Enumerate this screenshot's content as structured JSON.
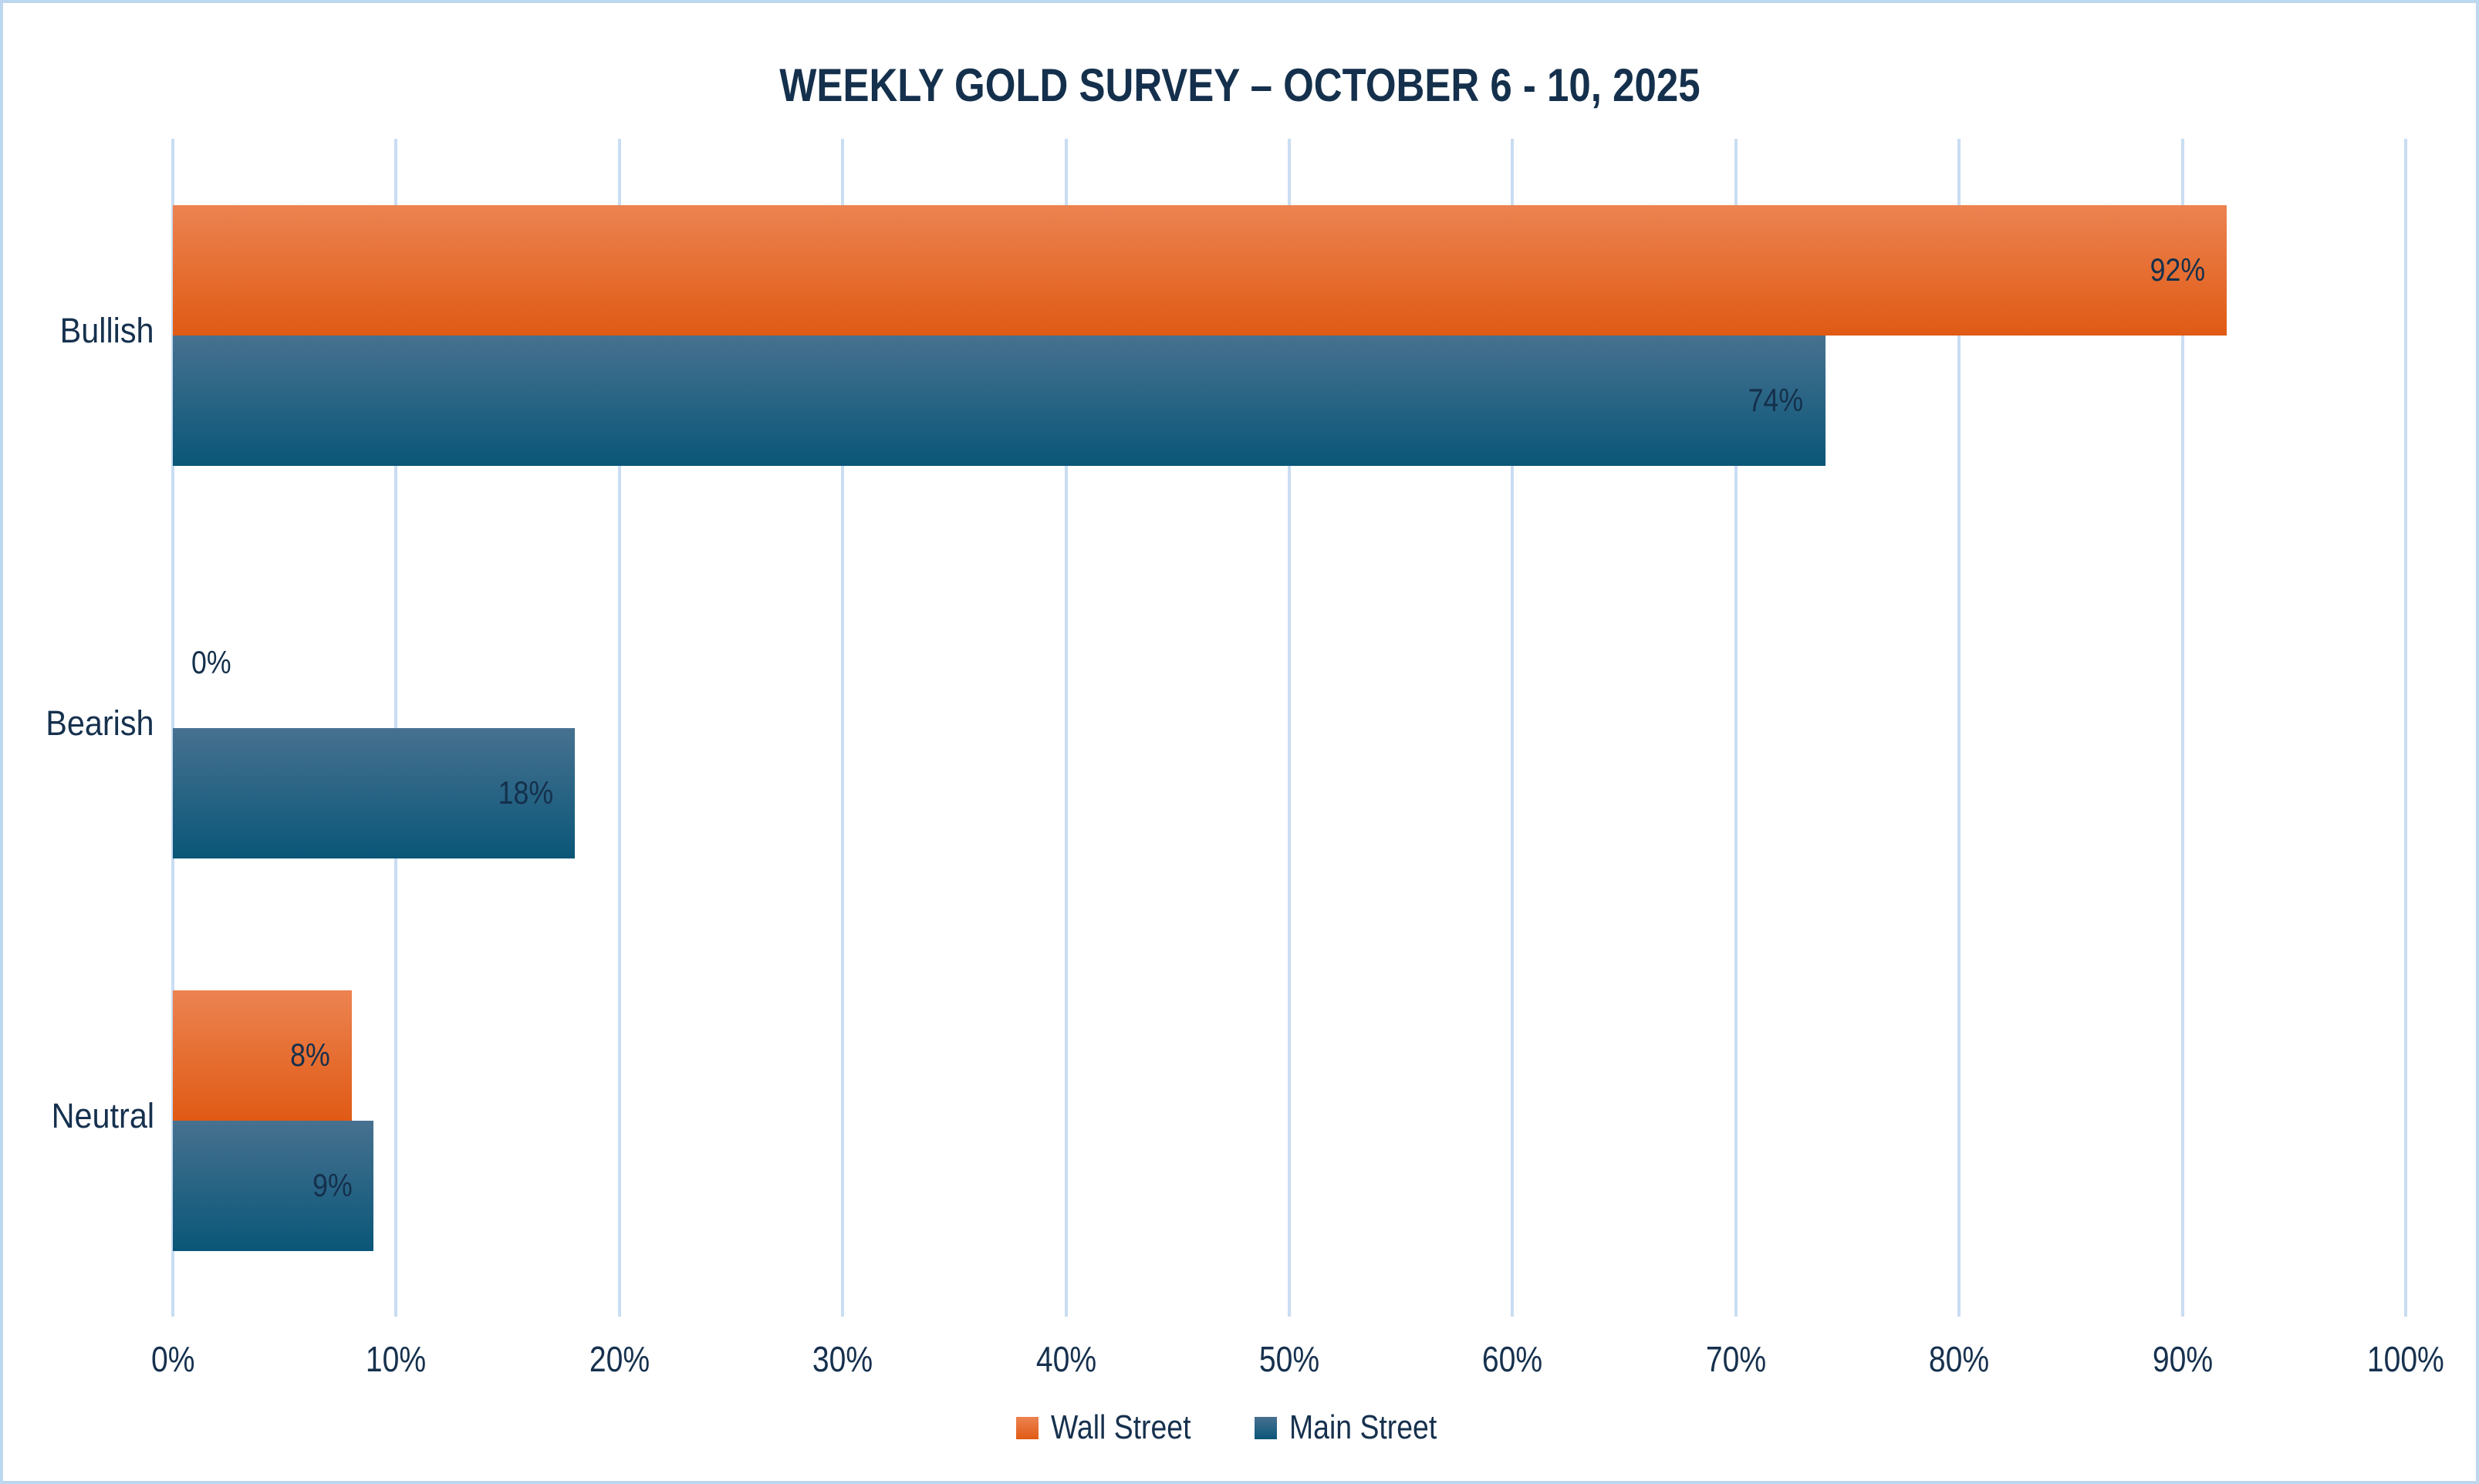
{
  "chart_data": {
    "type": "bar",
    "orientation": "horizontal",
    "title": "WEEKLY GOLD SURVEY – OCTOBER 6 - 10, 2025",
    "categories": [
      "Bullish",
      "Bearish",
      "Neutral"
    ],
    "series": [
      {
        "name": "Wall Street",
        "values": [
          92,
          0,
          8
        ]
      },
      {
        "name": "Main Street",
        "values": [
          74,
          18,
          9
        ]
      }
    ],
    "value_suffix": "%",
    "xlim": [
      0,
      100
    ],
    "x_ticks": [
      "0%",
      "10%",
      "20%",
      "30%",
      "40%",
      "50%",
      "60%",
      "70%",
      "80%",
      "90%",
      "100%"
    ],
    "grid": "vertical",
    "legend_position": "bottom",
    "data_labels": "inside-end"
  },
  "colors": {
    "background": "#FFFFFF",
    "frame_border": "#BCD7EE",
    "gridline": "#C9DDF3",
    "title_text": "#14304C",
    "axis_text": "#16314E",
    "data_label_text": "#14304C",
    "wall_street_gradient_top": "#EC8351",
    "wall_street_gradient_bottom": "#E05A14",
    "main_street_gradient_top": "#477190",
    "main_street_gradient_bottom": "#0A5678"
  }
}
